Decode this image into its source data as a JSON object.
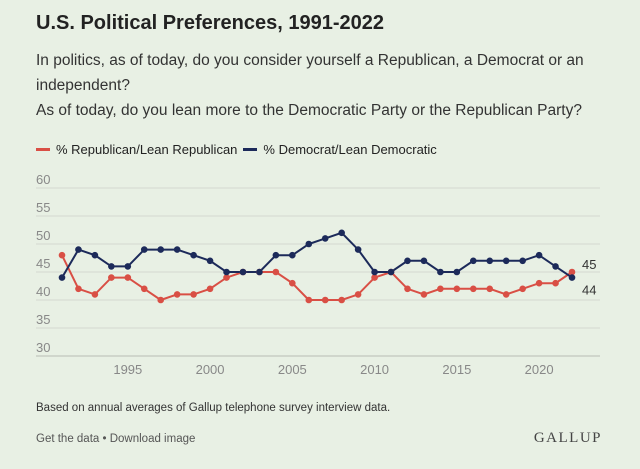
{
  "chart_data": {
    "type": "line",
    "title": "U.S. Political Preferences, 1991-2022",
    "subtitle_lines": [
      "In politics, as of today, do you consider yourself a Republican, a Democrat or an",
      "independent?",
      "As of today, do you lean more to the Democratic Party or the Republican Party?"
    ],
    "xlabel": "",
    "ylabel": "",
    "xlim": [
      1991,
      2022
    ],
    "ylim": [
      30,
      60
    ],
    "x_ticks": [
      1995,
      2000,
      2005,
      2010,
      2015,
      2020
    ],
    "y_ticks": [
      30,
      35,
      40,
      45,
      50,
      55,
      60
    ],
    "grid": true,
    "legend_position": "top-left",
    "x": [
      1991,
      1992,
      1993,
      1994,
      1995,
      1996,
      1997,
      1998,
      1999,
      2000,
      2001,
      2002,
      2003,
      2004,
      2005,
      2006,
      2007,
      2008,
      2009,
      2010,
      2011,
      2012,
      2013,
      2014,
      2015,
      2016,
      2017,
      2018,
      2019,
      2020,
      2021,
      2022
    ],
    "series": [
      {
        "name": "% Republican/Lean Republican",
        "color": "#d94f45",
        "values": [
          48,
          42,
          41,
          44,
          44,
          42,
          40,
          41,
          41,
          42,
          44,
          45,
          45,
          45,
          43,
          40,
          40,
          40,
          41,
          44,
          45,
          42,
          41,
          42,
          42,
          42,
          42,
          41,
          42,
          43,
          43,
          45
        ],
        "end_label": "45"
      },
      {
        "name": "% Democrat/Lean Democratic",
        "color": "#1c2a5a",
        "values": [
          44,
          49,
          48,
          46,
          46,
          49,
          49,
          49,
          48,
          47,
          45,
          45,
          45,
          48,
          48,
          50,
          51,
          52,
          49,
          45,
          45,
          47,
          47,
          45,
          45,
          47,
          47,
          47,
          47,
          48,
          46,
          44
        ],
        "end_label": "44"
      }
    ]
  },
  "footnote": "Based on annual averages of Gallup telephone survey interview data.",
  "links": {
    "get_data": "Get the data",
    "separator": " • ",
    "download": "Download image"
  },
  "brand": "GALLUP"
}
